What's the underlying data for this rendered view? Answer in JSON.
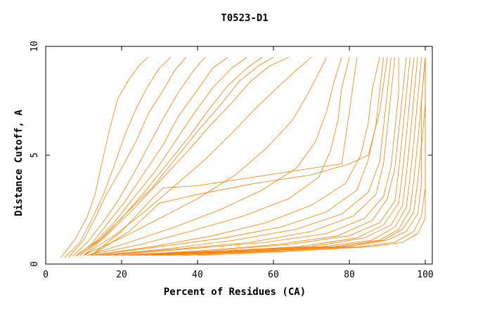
{
  "chart_data": {
    "type": "line",
    "title": "T0523-D1",
    "xlabel": "Percent of Residues (CA)",
    "ylabel": "Distance Cutoff, A",
    "xlim": [
      0,
      100
    ],
    "ylim": [
      0,
      10
    ],
    "x_ticks": [
      0,
      20,
      40,
      60,
      80,
      100
    ],
    "y_ticks": [
      0,
      5,
      10
    ],
    "grid": false,
    "legend": "none",
    "series_color": "#ff8000",
    "series": [
      {
        "x": [
          4,
          8,
          11,
          13,
          15,
          17,
          19,
          22,
          25,
          27
        ],
        "y": [
          0.3,
          1.2,
          2.2,
          3.2,
          4.8,
          6.3,
          7.6,
          8.5,
          9.2,
          9.5
        ]
      },
      {
        "x": [
          5,
          9,
          12,
          15,
          18,
          21,
          24,
          27,
          30,
          33
        ],
        "y": [
          0.3,
          1.0,
          2.0,
          3.1,
          4.5,
          6.0,
          7.2,
          8.2,
          9.0,
          9.5
        ]
      },
      {
        "x": [
          6,
          10,
          13,
          16,
          20,
          24,
          27,
          31,
          34,
          37
        ],
        "y": [
          0.3,
          1.1,
          2.1,
          3.2,
          4.4,
          5.7,
          6.9,
          8.0,
          8.9,
          9.5
        ]
      },
      {
        "x": [
          7,
          11,
          15,
          19,
          23,
          27,
          31,
          35,
          39,
          42
        ],
        "y": [
          0.35,
          1.0,
          1.9,
          2.9,
          4.1,
          5.4,
          6.7,
          7.9,
          8.9,
          9.5
        ]
      },
      {
        "x": [
          8,
          12,
          16,
          21,
          26,
          31,
          35,
          40,
          44,
          48
        ],
        "y": [
          0.35,
          0.9,
          1.8,
          2.9,
          4.2,
          5.5,
          6.8,
          8.0,
          9.0,
          9.5
        ]
      },
      {
        "x": [
          8,
          13,
          18,
          23,
          29,
          34,
          39,
          44,
          49,
          53
        ],
        "y": [
          0.4,
          1.0,
          1.9,
          3.0,
          4.3,
          5.6,
          6.9,
          8.1,
          9.0,
          9.5
        ]
      },
      {
        "x": [
          9,
          14,
          20,
          26,
          32,
          38,
          43,
          48,
          53,
          57
        ],
        "y": [
          0.4,
          1.1,
          2.1,
          3.3,
          4.6,
          5.9,
          7.1,
          8.2,
          9.0,
          9.5
        ]
      },
      {
        "x": [
          9,
          15,
          21,
          28,
          34,
          40,
          46,
          51,
          56,
          60
        ],
        "y": [
          0.4,
          1.2,
          2.3,
          3.5,
          4.8,
          6.1,
          7.3,
          8.4,
          9.1,
          9.5
        ]
      },
      {
        "x": [
          10,
          16,
          23,
          30,
          37,
          43,
          49,
          54,
          59,
          64
        ],
        "y": [
          0.4,
          1.3,
          2.5,
          3.8,
          5.1,
          6.3,
          7.4,
          8.4,
          9.1,
          9.5
        ]
      },
      {
        "x": [
          10,
          18,
          26,
          34,
          42,
          49,
          55,
          61,
          66,
          70
        ],
        "y": [
          0.4,
          1.3,
          2.4,
          3.6,
          4.8,
          6.0,
          7.1,
          8.1,
          8.9,
          9.5
        ]
      },
      {
        "x": [
          10,
          20,
          30,
          40,
          50,
          58,
          65,
          69,
          72,
          74
        ],
        "y": [
          0.4,
          1.2,
          2.1,
          3.0,
          4.1,
          5.3,
          6.6,
          7.8,
          8.8,
          9.5
        ]
      },
      {
        "x": [
          11,
          22,
          34,
          46,
          57,
          66,
          71,
          74,
          76,
          78
        ],
        "y": [
          0.4,
          1.0,
          1.7,
          2.5,
          3.4,
          4.4,
          5.6,
          7.0,
          8.4,
          9.5
        ]
      },
      {
        "x": [
          11,
          25,
          38,
          52,
          64,
          72,
          75,
          77,
          78,
          80
        ],
        "y": [
          0.4,
          0.9,
          1.5,
          2.2,
          3.0,
          4.0,
          5.2,
          6.6,
          8.1,
          9.5
        ]
      },
      {
        "x": [
          12,
          20,
          28,
          31,
          40,
          55,
          70,
          78,
          80,
          82
        ],
        "y": [
          0.4,
          1.5,
          3.0,
          3.5,
          3.6,
          4.0,
          4.4,
          4.6,
          7.0,
          9.5
        ]
      },
      {
        "x": [
          12,
          22,
          30,
          40,
          55,
          70,
          80,
          85,
          88,
          90
        ],
        "y": [
          0.4,
          1.5,
          2.8,
          3.2,
          3.7,
          4.1,
          4.6,
          5.0,
          7.0,
          9.5
        ]
      },
      {
        "x": [
          12,
          28,
          44,
          58,
          70,
          79,
          83,
          85,
          86,
          88
        ],
        "y": [
          0.4,
          0.8,
          1.3,
          1.9,
          2.7,
          3.7,
          5.0,
          6.5,
          8.0,
          9.5
        ]
      },
      {
        "x": [
          13,
          30,
          47,
          62,
          74,
          82,
          85,
          87,
          88,
          89
        ],
        "y": [
          0.4,
          0.8,
          1.2,
          1.7,
          2.4,
          3.4,
          4.8,
          6.4,
          8.0,
          9.5
        ]
      },
      {
        "x": [
          14,
          32,
          50,
          66,
          78,
          85,
          88,
          89,
          90,
          91
        ],
        "y": [
          0.4,
          0.7,
          1.1,
          1.6,
          2.3,
          3.3,
          4.7,
          6.3,
          7.9,
          9.5
        ]
      },
      {
        "x": [
          15,
          35,
          54,
          70,
          81,
          87,
          89,
          90,
          91,
          92
        ],
        "y": [
          0.4,
          0.7,
          1.0,
          1.5,
          2.2,
          3.2,
          4.6,
          6.2,
          7.9,
          9.5
        ]
      },
      {
        "x": [
          16,
          38,
          58,
          74,
          84,
          89,
          91,
          92,
          93,
          93
        ],
        "y": [
          0.4,
          0.7,
          1.0,
          1.4,
          2.1,
          3.1,
          4.5,
          6.2,
          7.9,
          9.5
        ]
      },
      {
        "x": [
          18,
          40,
          61,
          77,
          86,
          90,
          92,
          93,
          94,
          95
        ],
        "y": [
          0.4,
          0.6,
          0.9,
          1.3,
          2.0,
          3.0,
          4.4,
          6.1,
          7.8,
          9.5
        ]
      },
      {
        "x": [
          20,
          43,
          64,
          80,
          88,
          92,
          93,
          94,
          95,
          96
        ],
        "y": [
          0.4,
          0.6,
          0.9,
          1.3,
          1.9,
          2.9,
          4.3,
          6.0,
          7.8,
          9.5
        ]
      },
      {
        "x": [
          22,
          46,
          67,
          82,
          89,
          93,
          94,
          95,
          96,
          97
        ],
        "y": [
          0.4,
          0.6,
          0.8,
          1.2,
          1.8,
          2.8,
          4.2,
          5.9,
          7.7,
          9.5
        ]
      },
      {
        "x": [
          24,
          48,
          70,
          84,
          91,
          94,
          95,
          96,
          97,
          98
        ],
        "y": [
          0.4,
          0.6,
          0.8,
          1.2,
          1.8,
          2.7,
          4.1,
          5.8,
          7.7,
          9.5
        ]
      },
      {
        "x": [
          26,
          51,
          73,
          86,
          92,
          95,
          96,
          97,
          98,
          99
        ],
        "y": [
          0.4,
          0.6,
          0.8,
          1.1,
          1.7,
          2.6,
          4.0,
          5.7,
          7.6,
          9.5
        ]
      },
      {
        "x": [
          28,
          54,
          76,
          88,
          93,
          96,
          97,
          98,
          99,
          100
        ],
        "y": [
          0.4,
          0.6,
          0.8,
          1.1,
          1.6,
          2.5,
          3.9,
          5.6,
          7.5,
          9.5
        ]
      },
      {
        "x": [
          30,
          56,
          78,
          89,
          94,
          97,
          98,
          99,
          99,
          100
        ],
        "y": [
          0.4,
          0.6,
          0.8,
          1.1,
          1.6,
          2.4,
          3.8,
          5.5,
          7.5,
          9.5
        ]
      },
      {
        "x": [
          32,
          58,
          80,
          90,
          95,
          98,
          99,
          99,
          100,
          100
        ],
        "y": [
          0.4,
          0.6,
          0.8,
          1.1,
          1.5,
          2.3,
          3.7,
          5.4,
          7.4,
          9.5
        ]
      },
      {
        "x": [
          36,
          62,
          83,
          92,
          97,
          99,
          100,
          100,
          100,
          100
        ],
        "y": [
          0.4,
          0.6,
          0.8,
          1.0,
          1.5,
          2.2,
          3.5,
          5.3,
          7.3,
          9.5
        ]
      },
      {
        "x": [
          40,
          66,
          86,
          94,
          98,
          100,
          100,
          100,
          100,
          100
        ],
        "y": [
          0.4,
          0.6,
          0.8,
          1.0,
          1.4,
          2.1,
          3.4,
          5.2,
          7.3,
          9.5
        ]
      }
    ]
  }
}
